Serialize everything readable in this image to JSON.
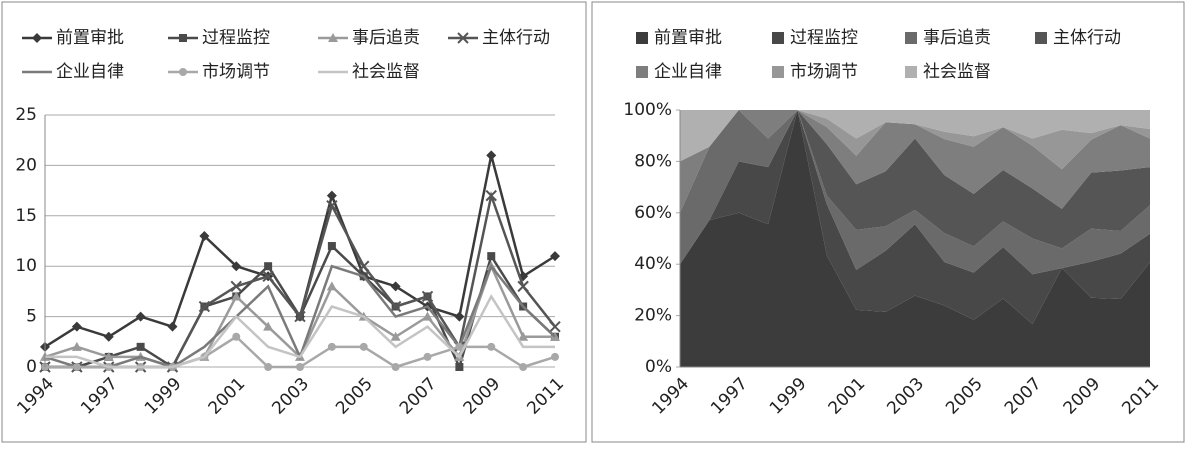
{
  "chart_data": [
    {
      "type": "line",
      "categories": [
        "1994",
        null,
        "1997",
        null,
        "1999",
        null,
        "2001",
        null,
        "2003",
        null,
        "2005",
        null,
        "2007",
        null,
        "2009",
        null,
        "2011"
      ],
      "series": [
        {
          "name": "前置审批",
          "color": "#3a3a3a",
          "marker": "diamond",
          "values": [
            2,
            4,
            3,
            5,
            4,
            13,
            10,
            9,
            5,
            17,
            9,
            8,
            6,
            5,
            21,
            9,
            11
          ]
        },
        {
          "name": "过程监控",
          "color": "#4a4a4a",
          "marker": "square",
          "values": [
            0,
            0,
            1,
            2,
            0,
            6,
            7,
            10,
            5,
            12,
            9,
            6,
            7,
            0,
            11,
            6,
            3
          ]
        },
        {
          "name": "事后追责",
          "color": "#9a9a9a",
          "marker": "triangle",
          "values": [
            1,
            2,
            1,
            1,
            0,
            1,
            7,
            4,
            1,
            8,
            5,
            3,
            5,
            1,
            10,
            3,
            3
          ]
        },
        {
          "name": "主体行动",
          "color": "#555555",
          "marker": "x",
          "values": [
            0,
            0,
            0,
            0,
            0,
            6,
            8,
            9,
            5,
            16,
            10,
            6,
            7,
            2,
            17,
            8,
            4
          ]
        },
        {
          "name": "企业自律",
          "color": "#7a7a7a",
          "marker": "none",
          "values": [
            1,
            0,
            0,
            1,
            0,
            2,
            5,
            8,
            1,
            10,
            9,
            5,
            6,
            2,
            10,
            6,
            3
          ]
        },
        {
          "name": "市场调节",
          "color": "#a8a8a8",
          "marker": "circle",
          "values": [
            0,
            0,
            0,
            0,
            0,
            1,
            3,
            0,
            0,
            2,
            2,
            0,
            1,
            2,
            2,
            0,
            1
          ]
        },
        {
          "name": "社会监督",
          "color": "#c4c4c4",
          "marker": "none",
          "values": [
            1,
            1,
            0,
            0,
            0,
            1,
            5,
            2,
            1,
            6,
            5,
            2,
            4,
            1,
            7,
            2,
            2
          ]
        }
      ],
      "ylim": [
        0,
        25
      ],
      "yticks": [
        0,
        5,
        10,
        15,
        20,
        25
      ],
      "grid": true
    },
    {
      "type": "area",
      "stacked": "percent",
      "categories": [
        "1994",
        null,
        "1997",
        null,
        "1999",
        null,
        "2001",
        null,
        "2003",
        null,
        "2005",
        null,
        "2007",
        null,
        "2009",
        null,
        "2011"
      ],
      "series": [
        {
          "name": "前置审批",
          "color": "#3c3c3c",
          "values": [
            2,
            4,
            3,
            5,
            4,
            13,
            10,
            9,
            5,
            17,
            9,
            8,
            6,
            5,
            21,
            9,
            11
          ]
        },
        {
          "name": "过程监控",
          "color": "#484848",
          "values": [
            0,
            0,
            1,
            2,
            0,
            6,
            7,
            10,
            5,
            12,
            9,
            6,
            7,
            0,
            11,
            6,
            3
          ]
        },
        {
          "name": "事后追责",
          "color": "#6a6a6a",
          "values": [
            1,
            2,
            1,
            1,
            0,
            1,
            7,
            4,
            1,
            8,
            5,
            3,
            5,
            1,
            10,
            3,
            3
          ]
        },
        {
          "name": "主体行动",
          "color": "#555555",
          "values": [
            0,
            0,
            0,
            0,
            0,
            6,
            8,
            9,
            5,
            16,
            10,
            6,
            7,
            2,
            17,
            8,
            4
          ]
        },
        {
          "name": "企业自律",
          "color": "#7e7e7e",
          "values": [
            1,
            0,
            0,
            1,
            0,
            2,
            5,
            8,
            1,
            10,
            9,
            5,
            6,
            2,
            10,
            6,
            3
          ]
        },
        {
          "name": "市场调节",
          "color": "#979797",
          "values": [
            0,
            0,
            0,
            0,
            0,
            1,
            3,
            0,
            0,
            2,
            2,
            0,
            1,
            2,
            2,
            0,
            1
          ]
        },
        {
          "name": "社会监督",
          "color": "#b0b0b0",
          "values": [
            1,
            1,
            0,
            0,
            0,
            1,
            5,
            2,
            1,
            6,
            5,
            2,
            4,
            1,
            7,
            2,
            2
          ]
        }
      ],
      "ylim": [
        0,
        100
      ],
      "yticks": [
        {
          "value": 0,
          "label": "0%"
        },
        {
          "value": 20,
          "label": "20%"
        },
        {
          "value": 40,
          "label": "40%"
        },
        {
          "value": 60,
          "label": "60%"
        },
        {
          "value": 80,
          "label": "80%"
        },
        {
          "value": 100,
          "label": "100%"
        }
      ]
    }
  ]
}
